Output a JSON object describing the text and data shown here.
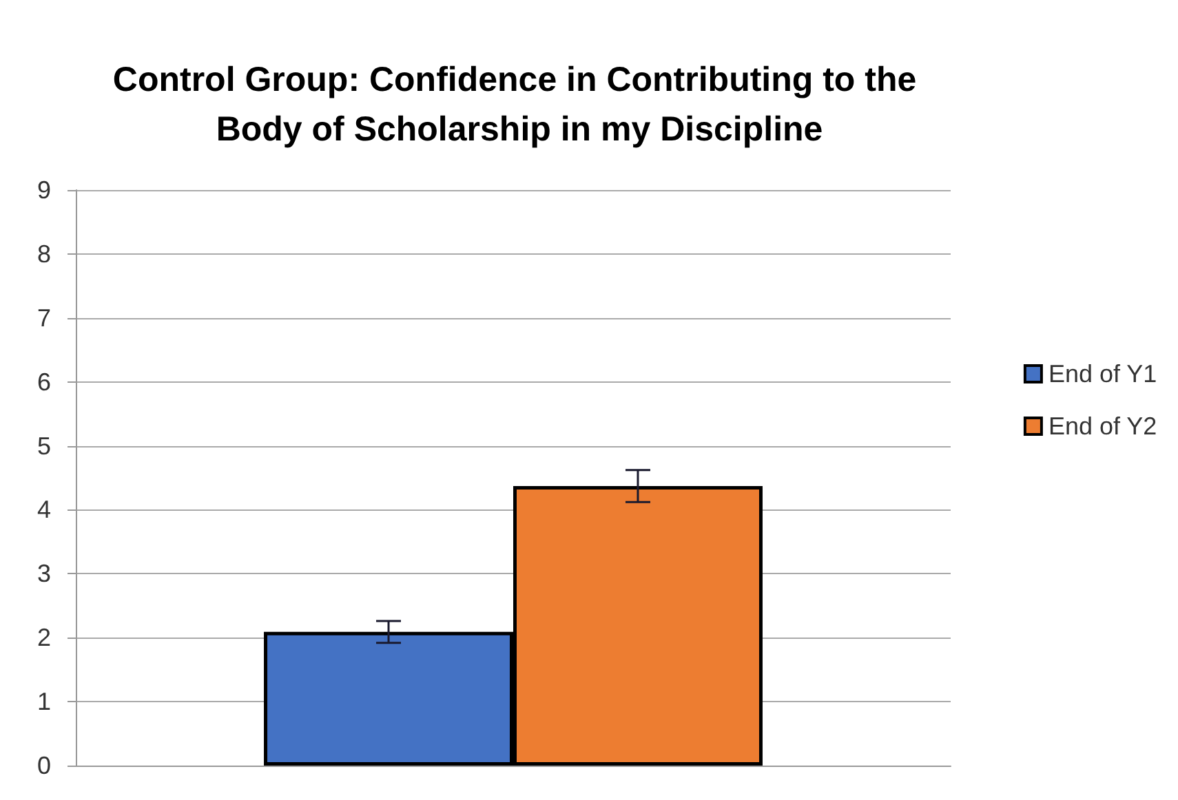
{
  "chart_data": {
    "type": "bar",
    "title": "Control Group: Confidence in Contributing to the Body of Scholarship in my Discipline",
    "categories": [
      null
    ],
    "series": [
      {
        "name": "End of Y1",
        "color": "#4472c4",
        "values": [
          2.09
        ],
        "errors": [
          0.17
        ]
      },
      {
        "name": "End of Y2",
        "color": "#ed7d31",
        "values": [
          4.37
        ],
        "errors": [
          0.25
        ]
      }
    ],
    "ylim": [
      0,
      9
    ],
    "yticks": [
      0,
      1,
      2,
      3,
      4,
      5,
      6,
      7,
      8,
      9
    ],
    "grid": "y",
    "legend": "right"
  }
}
